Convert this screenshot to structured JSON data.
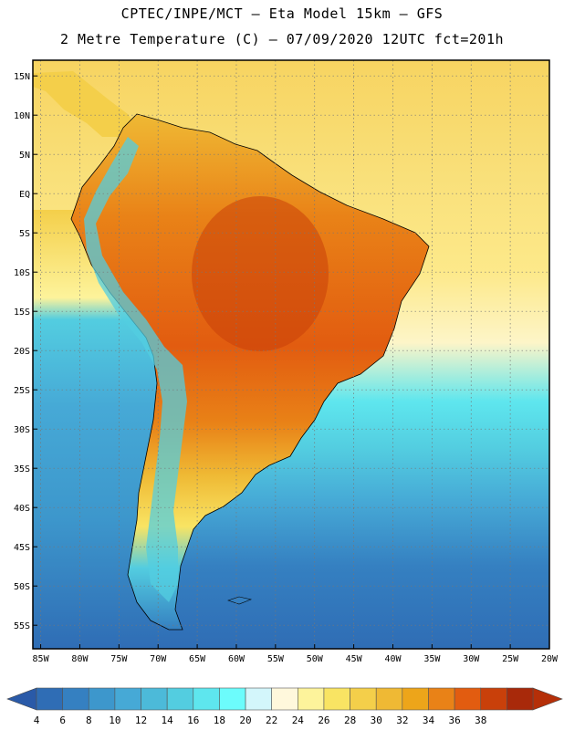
{
  "title": {
    "line1": "CPTEC/INPE/MCT –  Eta Model 15km – GFS",
    "line2": "2 Metre Temperature (C) – 07/09/2020 12UTC fct=201h"
  },
  "map": {
    "lon_range": [
      -86,
      -20
    ],
    "lat_range": [
      -58,
      17
    ],
    "lat_ticks": [
      "15N",
      "10N",
      "5N",
      "EQ",
      "5S",
      "10S",
      "15S",
      "20S",
      "25S",
      "30S",
      "35S",
      "40S",
      "45S",
      "50S",
      "55S"
    ],
    "lon_ticks": [
      "85W",
      "80W",
      "75W",
      "70W",
      "65W",
      "60W",
      "55W",
      "50W",
      "45W",
      "40W",
      "35W",
      "30W",
      "25W",
      "20W"
    ],
    "gridlines": true
  },
  "colorbar": {
    "labels": [
      "4",
      "6",
      "8",
      "10",
      "12",
      "14",
      "16",
      "18",
      "20",
      "22",
      "24",
      "26",
      "28",
      "30",
      "32",
      "34",
      "36",
      "38"
    ],
    "colors": [
      "#2f6db5",
      "#3580c1",
      "#3d97cc",
      "#46a9d6",
      "#4cbad9",
      "#53cde0",
      "#5ee6ee",
      "#6cfcfc",
      "#d3f6fb",
      "#fff8dc",
      "#fdf39b",
      "#f9e463",
      "#f4cf4a",
      "#efb934",
      "#eda51a",
      "#e98217",
      "#e25c10",
      "#c9400a",
      "#a8290a"
    ],
    "low_arrow_color": "#2a5aa8",
    "high_arrow_color": "#b52f08"
  }
}
